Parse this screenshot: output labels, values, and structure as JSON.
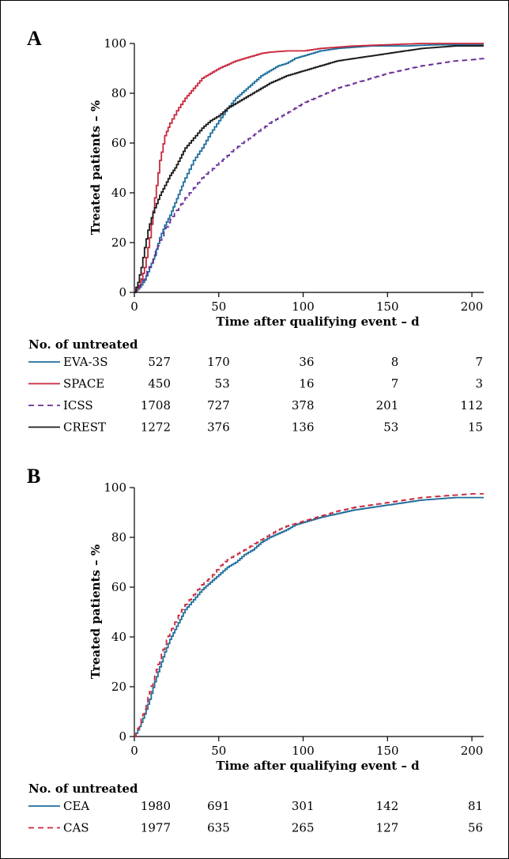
{
  "chart_data": [
    {
      "panel": "A",
      "type": "line",
      "xlabel": "Time after qualifying event – d",
      "ylabel": "Treated patients – %",
      "xlim": [
        0,
        207
      ],
      "ylim": [
        0,
        100
      ],
      "x_ticks": [
        "0",
        "50",
        "100",
        "150",
        "200"
      ],
      "y_ticks": [
        "0",
        "20",
        "40",
        "60",
        "80",
        "100"
      ],
      "grid": false,
      "series": [
        {
          "name": "EVA-3S",
          "color": "#1f6e9c",
          "dash": "solid",
          "n_start": "527",
          "points": [
            [
              0,
              0
            ],
            [
              3,
              2
            ],
            [
              6,
              5
            ],
            [
              9,
              10
            ],
            [
              12,
              15
            ],
            [
              15,
              22
            ],
            [
              18,
              27
            ],
            [
              21,
              31
            ],
            [
              24,
              36
            ],
            [
              27,
              41
            ],
            [
              30,
              46
            ],
            [
              35,
              53
            ],
            [
              40,
              58
            ],
            [
              45,
              64
            ],
            [
              50,
              69
            ],
            [
              55,
              74
            ],
            [
              60,
              78
            ],
            [
              65,
              81
            ],
            [
              70,
              84
            ],
            [
              75,
              87
            ],
            [
              80,
              89
            ],
            [
              85,
              91
            ],
            [
              90,
              92
            ],
            [
              95,
              94
            ],
            [
              100,
              95
            ],
            [
              110,
              97
            ],
            [
              120,
              98
            ],
            [
              130,
              98.5
            ],
            [
              140,
              99
            ],
            [
              150,
              99
            ],
            [
              160,
              99
            ],
            [
              180,
              99.5
            ],
            [
              200,
              99.5
            ],
            [
              207,
              99.5
            ]
          ]
        },
        {
          "name": "SPACE",
          "color": "#c8283c",
          "dash": "solid",
          "n_start": "450",
          "points": [
            [
              0,
              0
            ],
            [
              3,
              3
            ],
            [
              6,
              10
            ],
            [
              9,
              22
            ],
            [
              12,
              38
            ],
            [
              15,
              53
            ],
            [
              18,
              63
            ],
            [
              21,
              68
            ],
            [
              25,
              73
            ],
            [
              30,
              78
            ],
            [
              35,
              82
            ],
            [
              40,
              86
            ],
            [
              45,
              88
            ],
            [
              50,
              90
            ],
            [
              55,
              91.5
            ],
            [
              60,
              93
            ],
            [
              65,
              94
            ],
            [
              70,
              95
            ],
            [
              75,
              96
            ],
            [
              80,
              96.5
            ],
            [
              90,
              97
            ],
            [
              100,
              97
            ],
            [
              110,
              98
            ],
            [
              120,
              98.5
            ],
            [
              130,
              99
            ],
            [
              150,
              99.5
            ],
            [
              170,
              100
            ],
            [
              207,
              100
            ]
          ]
        },
        {
          "name": "ICSS",
          "color": "#6a2f96",
          "dash": "dashed",
          "n_start": "1708",
          "points": [
            [
              0,
              0
            ],
            [
              5,
              5
            ],
            [
              10,
              12
            ],
            [
              15,
              21
            ],
            [
              20,
              28
            ],
            [
              25,
              33
            ],
            [
              30,
              38
            ],
            [
              35,
              42
            ],
            [
              40,
              46
            ],
            [
              45,
              49
            ],
            [
              50,
              52
            ],
            [
              60,
              58
            ],
            [
              70,
              63
            ],
            [
              80,
              68
            ],
            [
              90,
              72
            ],
            [
              100,
              76
            ],
            [
              110,
              79
            ],
            [
              120,
              82
            ],
            [
              130,
              84
            ],
            [
              140,
              86
            ],
            [
              150,
              88
            ],
            [
              160,
              89.5
            ],
            [
              170,
              91
            ],
            [
              180,
              92
            ],
            [
              190,
              93
            ],
            [
              200,
              93.5
            ],
            [
              207,
              94
            ]
          ]
        },
        {
          "name": "CREST",
          "color": "#1a1a1a",
          "dash": "solid",
          "n_start": "1272",
          "points": [
            [
              0,
              0
            ],
            [
              2,
              4
            ],
            [
              4,
              10
            ],
            [
              6,
              18
            ],
            [
              8,
              25
            ],
            [
              10,
              30
            ],
            [
              12,
              34
            ],
            [
              15,
              39
            ],
            [
              18,
              43
            ],
            [
              21,
              47
            ],
            [
              24,
              50
            ],
            [
              27,
              54
            ],
            [
              30,
              58
            ],
            [
              35,
              62
            ],
            [
              40,
              66
            ],
            [
              45,
              69
            ],
            [
              50,
              71
            ],
            [
              55,
              74
            ],
            [
              60,
              76
            ],
            [
              65,
              78
            ],
            [
              70,
              80
            ],
            [
              75,
              82
            ],
            [
              80,
              84
            ],
            [
              90,
              87
            ],
            [
              100,
              89
            ],
            [
              110,
              91
            ],
            [
              120,
              93
            ],
            [
              130,
              94
            ],
            [
              140,
              95
            ],
            [
              150,
              96
            ],
            [
              160,
              97
            ],
            [
              170,
              98
            ],
            [
              180,
              98.5
            ],
            [
              190,
              99
            ],
            [
              207,
              99
            ]
          ]
        }
      ],
      "risk_table": {
        "title": "No. of untreated",
        "rows": [
          {
            "label": "EVA-3S",
            "start": "527",
            "values": [
              "170",
              "36",
              "8",
              "7"
            ],
            "color": "#1f6e9c",
            "dash": "solid"
          },
          {
            "label": "SPACE",
            "start": "450",
            "values": [
              "53",
              "16",
              "7",
              "3"
            ],
            "color": "#c8283c",
            "dash": "solid"
          },
          {
            "label": "ICSS",
            "start": "1708",
            "values": [
              "727",
              "378",
              "201",
              "112"
            ],
            "color": "#6a2f96",
            "dash": "dashed"
          },
          {
            "label": "CREST",
            "start": "1272",
            "values": [
              "376",
              "136",
              "53",
              "15"
            ],
            "color": "#1a1a1a",
            "dash": "solid"
          }
        ]
      }
    },
    {
      "panel": "B",
      "type": "line",
      "xlabel": "Time after qualifying event – d",
      "ylabel": "Treated patients – %",
      "xlim": [
        0,
        207
      ],
      "ylim": [
        0,
        100
      ],
      "x_ticks": [
        "0",
        "50",
        "100",
        "150",
        "200"
      ],
      "y_ticks": [
        "0",
        "20",
        "40",
        "60",
        "80",
        "100"
      ],
      "grid": false,
      "series": [
        {
          "name": "CEA",
          "color": "#1f6e9c",
          "dash": "solid",
          "n_start": "1980",
          "points": [
            [
              0,
              0
            ],
            [
              3,
              4
            ],
            [
              6,
              9
            ],
            [
              9,
              15
            ],
            [
              12,
              22
            ],
            [
              15,
              28
            ],
            [
              18,
              34
            ],
            [
              21,
              39
            ],
            [
              24,
              43
            ],
            [
              27,
              47
            ],
            [
              30,
              51
            ],
            [
              35,
              55
            ],
            [
              40,
              59
            ],
            [
              45,
              62
            ],
            [
              50,
              65
            ],
            [
              55,
              68
            ],
            [
              60,
              70
            ],
            [
              65,
              73
            ],
            [
              70,
              75
            ],
            [
              75,
              78
            ],
            [
              80,
              80
            ],
            [
              85,
              81.5
            ],
            [
              90,
              83
            ],
            [
              95,
              85
            ],
            [
              100,
              86
            ],
            [
              110,
              88
            ],
            [
              120,
              89.5
            ],
            [
              130,
              91
            ],
            [
              140,
              92
            ],
            [
              150,
              93
            ],
            [
              160,
              94
            ],
            [
              170,
              95
            ],
            [
              180,
              95.5
            ],
            [
              190,
              96
            ],
            [
              207,
              96
            ]
          ]
        },
        {
          "name": "CAS",
          "color": "#c8283c",
          "dash": "dashed",
          "n_start": "1977",
          "points": [
            [
              0,
              0
            ],
            [
              3,
              5
            ],
            [
              6,
              11
            ],
            [
              9,
              18
            ],
            [
              12,
              25
            ],
            [
              15,
              31
            ],
            [
              18,
              37
            ],
            [
              21,
              42
            ],
            [
              24,
              46
            ],
            [
              27,
              50
            ],
            [
              30,
              53
            ],
            [
              35,
              57
            ],
            [
              40,
              61
            ],
            [
              45,
              64
            ],
            [
              50,
              68
            ],
            [
              55,
              71
            ],
            [
              60,
              73
            ],
            [
              65,
              75
            ],
            [
              70,
              77
            ],
            [
              75,
              79
            ],
            [
              80,
              81
            ],
            [
              85,
              83
            ],
            [
              90,
              84.5
            ],
            [
              95,
              85.5
            ],
            [
              100,
              86.5
            ],
            [
              110,
              88.5
            ],
            [
              120,
              90.5
            ],
            [
              130,
              92
            ],
            [
              140,
              93
            ],
            [
              150,
              94
            ],
            [
              160,
              95
            ],
            [
              170,
              96
            ],
            [
              180,
              96.5
            ],
            [
              190,
              97
            ],
            [
              200,
              97.5
            ],
            [
              207,
              97.5
            ]
          ]
        }
      ],
      "risk_table": {
        "title": "No. of untreated",
        "rows": [
          {
            "label": "CEA",
            "start": "1980",
            "values": [
              "691",
              "301",
              "142",
              "81"
            ],
            "color": "#1f6e9c",
            "dash": "solid"
          },
          {
            "label": "CAS",
            "start": "1977",
            "values": [
              "635",
              "265",
              "127",
              "56"
            ],
            "color": "#c8283c",
            "dash": "dashed"
          }
        ]
      }
    }
  ]
}
